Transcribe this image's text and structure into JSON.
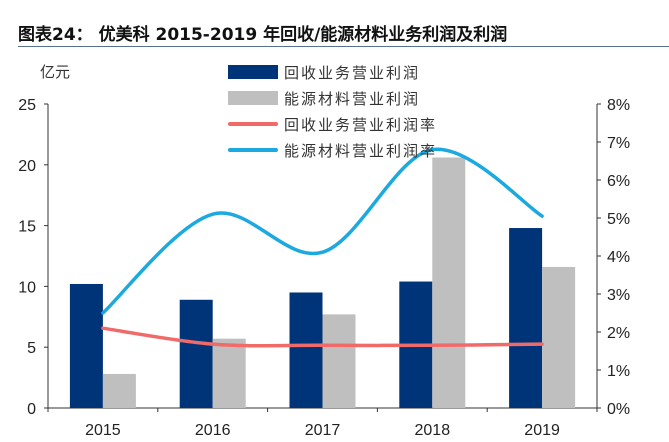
{
  "title": "图表24：  优美科 2015-2019 年回收/能源材料业务利润及利润",
  "chart_data": {
    "type": "bar",
    "title": "图表24：  优美科 2015-2019 年回收/能源材料业务利润及利润",
    "ylabel": "亿元",
    "categories": [
      "2015",
      "2016",
      "2017",
      "2018",
      "2019"
    ],
    "ylim": [
      0,
      25
    ],
    "yticks": [
      "0",
      "5",
      "10",
      "15",
      "20",
      "25"
    ],
    "y2lim": [
      0,
      8
    ],
    "y2ticks": [
      "0%",
      "1%",
      "2%",
      "3%",
      "4%",
      "5%",
      "6%",
      "7%",
      "8%"
    ],
    "legend_position": "top-center",
    "series": [
      {
        "name": "回收业务营业利润",
        "kind": "bar",
        "axis": "left",
        "color": "#003478",
        "values": [
          10.2,
          8.9,
          9.5,
          10.4,
          14.8
        ]
      },
      {
        "name": "能源材料营业利润",
        "kind": "bar",
        "axis": "left",
        "color": "#bfbfbf",
        "values": [
          2.8,
          5.7,
          7.7,
          20.6,
          11.6
        ]
      },
      {
        "name": "回收业务营业利润率",
        "kind": "line",
        "axis": "right",
        "color": "#f06a6a",
        "values": [
          2.1,
          1.68,
          1.65,
          1.65,
          1.68
        ]
      },
      {
        "name": "能源材料营业利润率",
        "kind": "line",
        "axis": "right",
        "color": "#1ba9e0",
        "values": [
          2.5,
          5.1,
          4.1,
          6.8,
          5.05
        ]
      }
    ]
  }
}
